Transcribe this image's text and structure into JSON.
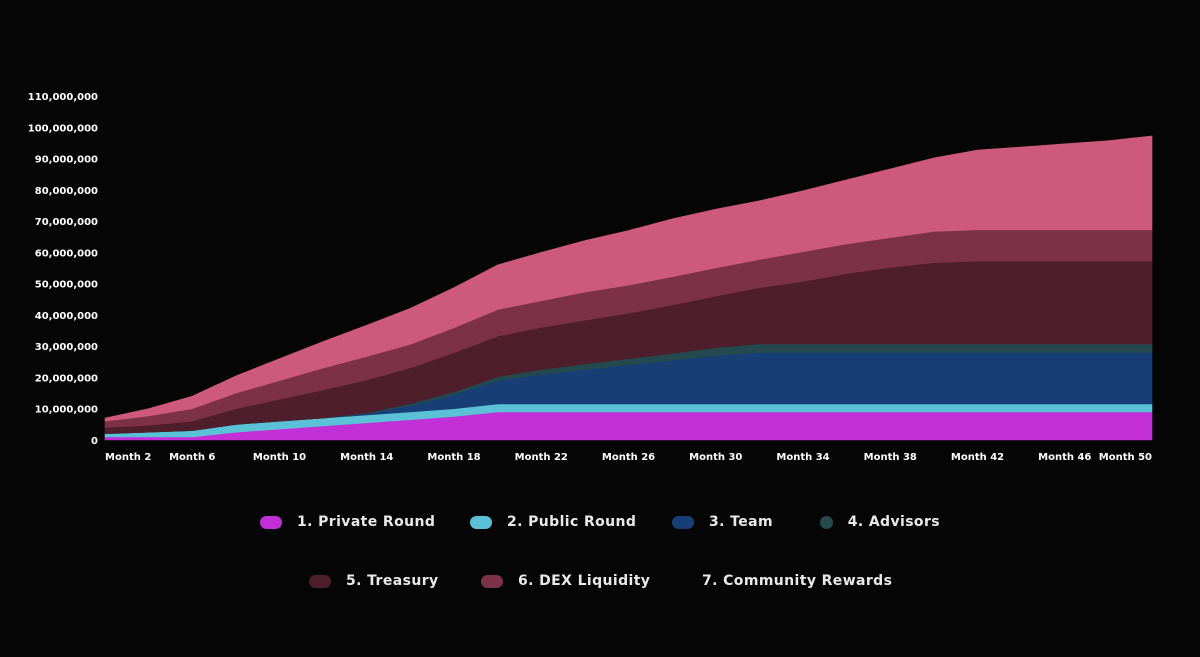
{
  "chart_data": {
    "type": "area",
    "stacked": true,
    "title": "",
    "xlabel": "",
    "ylabel": "",
    "ylim": [
      0,
      110000000
    ],
    "y_ticks": [
      "0",
      "10,000,000",
      "20,000,000",
      "30,000,000",
      "40,000,000",
      "50,000,000",
      "60,000,000",
      "70,000,000",
      "80,000,000",
      "90,000,000",
      "100,000,000",
      "110,000,000"
    ],
    "x_tick_labels": [
      "Month 2",
      "Month 6",
      "Month 10",
      "Month 14",
      "Month 18",
      "Month 22",
      "Month 26",
      "Month 30",
      "Month 34",
      "Month 38",
      "Month 42",
      "Month 46",
      "Month 50"
    ],
    "x": [
      2,
      4,
      6,
      8,
      10,
      12,
      14,
      16,
      18,
      20,
      22,
      24,
      26,
      28,
      30,
      32,
      34,
      36,
      38,
      40,
      42,
      44,
      46,
      48,
      50
    ],
    "series": [
      {
        "name": "1. Private Round",
        "color": "#c32fd6",
        "values": [
          1000000,
          1000000,
          1000000,
          2500000,
          3500000,
          4500000,
          5500000,
          6500000,
          7500000,
          9000000,
          9000000,
          9000000,
          9000000,
          9000000,
          9000000,
          9000000,
          9000000,
          9000000,
          9000000,
          9000000,
          9000000,
          9000000,
          9000000,
          9000000,
          9000000
        ]
      },
      {
        "name": "2. Public Round",
        "color": "#5bc1d6",
        "values": [
          1000000,
          1500000,
          2000000,
          2500000,
          2500000,
          2500000,
          2500000,
          2500000,
          2500000,
          2500000,
          2500000,
          2500000,
          2500000,
          2500000,
          2500000,
          2500000,
          2500000,
          2500000,
          2500000,
          2500000,
          2500000,
          2500000,
          2500000,
          2500000,
          2500000
        ]
      },
      {
        "name": "3. Team",
        "color": "#173f76",
        "values": [
          0,
          0,
          0,
          0,
          0,
          0,
          500000,
          2000000,
          4500000,
          7500000,
          9500000,
          11000000,
          12500000,
          14000000,
          15500000,
          16500000,
          16500000,
          16500000,
          16500000,
          16500000,
          16500000,
          16500000,
          16500000,
          16500000,
          16500000
        ]
      },
      {
        "name": "4. Advisors",
        "color": "#24494e",
        "values": [
          0,
          0,
          0,
          0,
          0,
          0,
          200000,
          600000,
          900000,
          1200000,
          1500000,
          1800000,
          2000000,
          2200000,
          2500000,
          2700000,
          2700000,
          2700000,
          2700000,
          2700000,
          2700000,
          2700000,
          2700000,
          2700000,
          2700000
        ]
      },
      {
        "name": "5. Treasury",
        "color": "#4f1e2c",
        "values": [
          2000000,
          2200000,
          3000000,
          5000000,
          7000000,
          9000000,
          10500000,
          11500000,
          12500000,
          13000000,
          13500000,
          14000000,
          14500000,
          15500000,
          16500000,
          18000000,
          20000000,
          22500000,
          24500000,
          26000000,
          26500000,
          26500000,
          26500000,
          26500000,
          26500000
        ]
      },
      {
        "name": "6. DEX Liquidity",
        "color": "#7d3149",
        "values": [
          2000000,
          3000000,
          4000000,
          5000000,
          6000000,
          7000000,
          7500000,
          7500000,
          8000000,
          8500000,
          8500000,
          9000000,
          9000000,
          9000000,
          9000000,
          9000000,
          9500000,
          9500000,
          9500000,
          10000000,
          10000000,
          10000000,
          10000000,
          10000000,
          10000000
        ]
      },
      {
        "name": "7. Community Rewards",
        "color": "#cd5a7c",
        "values": [
          1000000,
          2300000,
          4000000,
          5500000,
          7000000,
          8500000,
          10000000,
          11500000,
          12800000,
          14300000,
          15500000,
          16500000,
          17500000,
          18500000,
          18800000,
          18800000,
          19500000,
          20500000,
          22000000,
          23500000,
          25500000,
          26500000,
          27500000,
          28500000,
          30000000
        ]
      }
    ]
  },
  "legend": {
    "row1": [
      {
        "label": "1. Private Round",
        "color": "#c32fd6"
      },
      {
        "label": "2. Public Round",
        "color": "#5bc1d6"
      },
      {
        "label": "3. Team",
        "color": "#173f76"
      },
      {
        "label": "4. Advisors",
        "color": "#24494e"
      }
    ],
    "row2": [
      {
        "label": "5. Treasury",
        "color": "#4f1e2c"
      },
      {
        "label": "6. DEX Liquidity",
        "color": "#7d3149"
      },
      {
        "label": "7. Community Rewards",
        "color": "#cd5a7c"
      }
    ]
  }
}
